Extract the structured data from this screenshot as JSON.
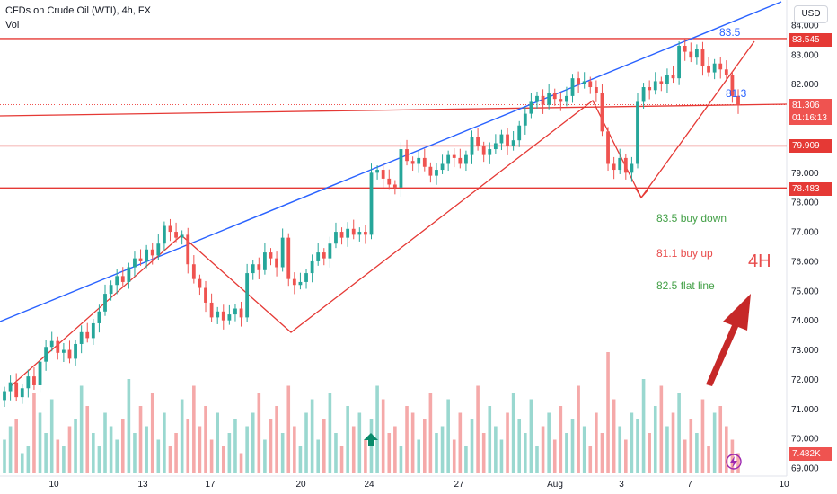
{
  "header": {
    "title": "CFDs on Crude Oil (WTI), 4h, FX",
    "volume_label": "Vol",
    "currency": "USD"
  },
  "price_badges": {
    "level_top": "83.545",
    "last_price": "81.306",
    "countdown": "01:16:13",
    "level_mid": "79.909",
    "level_low": "78.483",
    "volume": "7.482K"
  },
  "annotations": {
    "wedge_top": "83.5",
    "wedge_mid": "81.3",
    "note_1": "83.5 buy down",
    "note_2": "81.1 buy up",
    "note_3": "82.5 flat line",
    "timeframe": "4H"
  },
  "colors": {
    "up": "#26a69a",
    "down": "#ef5350",
    "red_line": "#e53935",
    "blue_line": "#2962ff",
    "green_text": "#43a047",
    "red_text": "#e84c4c",
    "vol_up": "#9ad8d0",
    "vol_down": "#f5a9a9"
  },
  "chart_data": {
    "type": "candlestick",
    "title": "CFDs on Crude Oil (WTI), 4h, FX",
    "y_ticks": [
      "84.000",
      "83.000",
      "82.000",
      "81.000",
      "80.000",
      "79.000",
      "78.000",
      "77.000",
      "76.000",
      "75.000",
      "74.000",
      "73.000",
      "72.000",
      "71.000",
      "70.000",
      "69.000"
    ],
    "ylim": [
      68.8,
      84.2
    ],
    "x_ticks": [
      "10",
      "13",
      "17",
      "20",
      "24",
      "27",
      "Aug",
      "3",
      "7",
      "10"
    ],
    "horizontal_levels": [
      83.545,
      79.909,
      78.483
    ],
    "last_price": 81.306,
    "close_series": [
      71.6,
      71.9,
      71.4,
      71.7,
      72.1,
      71.8,
      72.6,
      73.1,
      73.3,
      72.9,
      73.0,
      72.7,
      73.2,
      73.6,
      73.4,
      73.9,
      74.3,
      74.9,
      75.2,
      75.5,
      75.3,
      75.8,
      76.1,
      76.0,
      76.4,
      76.2,
      76.6,
      77.2,
      77.0,
      76.8,
      76.9,
      75.9,
      75.4,
      75.1,
      74.6,
      74.1,
      74.3,
      74.0,
      74.2,
      74.4,
      74.1,
      75.6,
      75.9,
      75.7,
      76.3,
      76.1,
      75.8,
      76.8,
      75.4,
      75.2,
      75.3,
      75.6,
      76.0,
      76.3,
      76.1,
      76.6,
      77.0,
      76.8,
      77.1,
      76.9,
      77.0,
      76.9,
      79.0,
      79.1,
      78.8,
      78.6,
      78.5,
      79.8,
      79.4,
      79.3,
      79.5,
      79.2,
      78.9,
      79.1,
      79.3,
      79.6,
      79.5,
      79.3,
      79.6,
      80.2,
      79.9,
      79.6,
      79.8,
      80.0,
      80.3,
      79.9,
      80.1,
      80.6,
      81.0,
      81.4,
      81.6,
      81.3,
      81.7,
      81.5,
      81.4,
      81.6,
      82.2,
      82.0,
      82.1,
      81.9,
      81.7,
      80.4,
      79.3,
      79.1,
      79.5,
      79.0,
      79.3,
      81.4,
      81.9,
      81.8,
      82.1,
      82.0,
      82.3,
      82.2,
      83.3,
      83.1,
      82.9,
      83.2,
      82.6,
      82.4,
      82.7,
      82.5,
      82.3,
      81.6,
      81.3
    ],
    "series": [
      {
        "name": "Volume",
        "values": [
          5,
          7,
          8,
          3,
          4,
          12,
          9,
          6,
          11,
          5,
          4,
          7,
          8,
          13,
          10,
          6,
          4,
          9,
          7,
          5,
          8,
          14,
          6,
          10,
          7,
          12,
          5,
          9,
          4,
          6,
          11,
          8,
          13,
          7,
          10,
          5,
          9,
          4,
          6,
          8,
          3,
          7,
          9,
          12,
          5,
          8,
          10,
          6,
          13,
          7,
          4,
          9,
          11,
          5,
          8,
          12,
          6,
          4,
          10,
          7,
          9,
          5,
          8,
          13,
          11,
          6,
          7,
          4,
          10,
          9,
          5,
          8,
          12,
          6,
          7,
          11,
          5,
          9,
          4,
          8,
          13,
          6,
          10,
          7,
          5,
          9,
          12,
          8,
          6,
          11,
          4,
          7,
          9,
          5,
          10,
          6,
          8,
          13,
          7,
          4,
          9,
          6,
          18,
          11,
          7,
          5,
          9,
          8,
          14,
          6,
          10,
          13,
          7,
          9,
          12,
          5,
          8,
          6,
          11,
          4,
          9,
          10,
          7,
          5,
          3
        ]
      }
    ],
    "text_annotations": [
      "83.5",
      "81.3",
      "83.5 buy down",
      "81.1 buy up",
      "82.5 flat line",
      "4H"
    ]
  }
}
